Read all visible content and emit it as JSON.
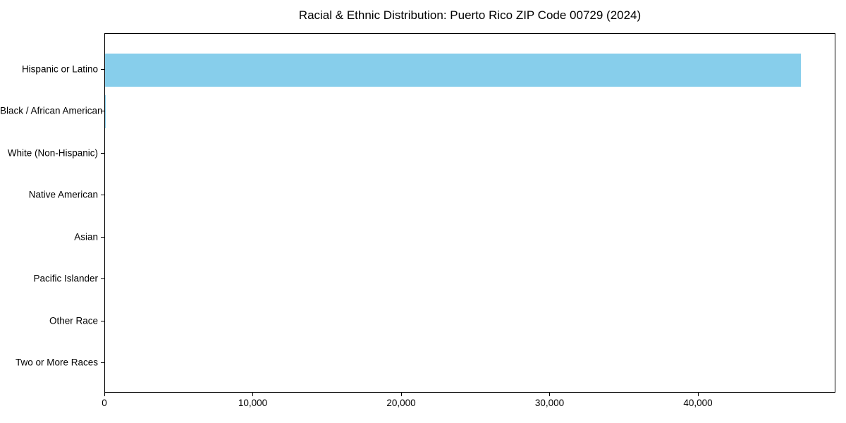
{
  "chart_data": {
    "type": "bar",
    "orientation": "horizontal",
    "title": "Racial & Ethnic Distribution: Puerto Rico ZIP Code 00729 (2024)",
    "categories": [
      "Hispanic or Latino",
      "Black / African American",
      "White (Non-Hispanic)",
      "Native American",
      "Asian",
      "Pacific Islander",
      "Other Race",
      "Two or More Races"
    ],
    "values": [
      46900,
      50,
      0,
      0,
      0,
      0,
      0,
      0
    ],
    "xlabel": "",
    "ylabel": "",
    "xlim": [
      0,
      49264
    ],
    "x_ticks": [
      0,
      10000,
      20000,
      30000,
      40000
    ],
    "x_tick_labels": [
      "0",
      "10,000",
      "20,000",
      "30,000",
      "40,000"
    ],
    "bar_color": "#87CEEB",
    "axis_color": "#000000",
    "grid": false,
    "legend": null
  }
}
